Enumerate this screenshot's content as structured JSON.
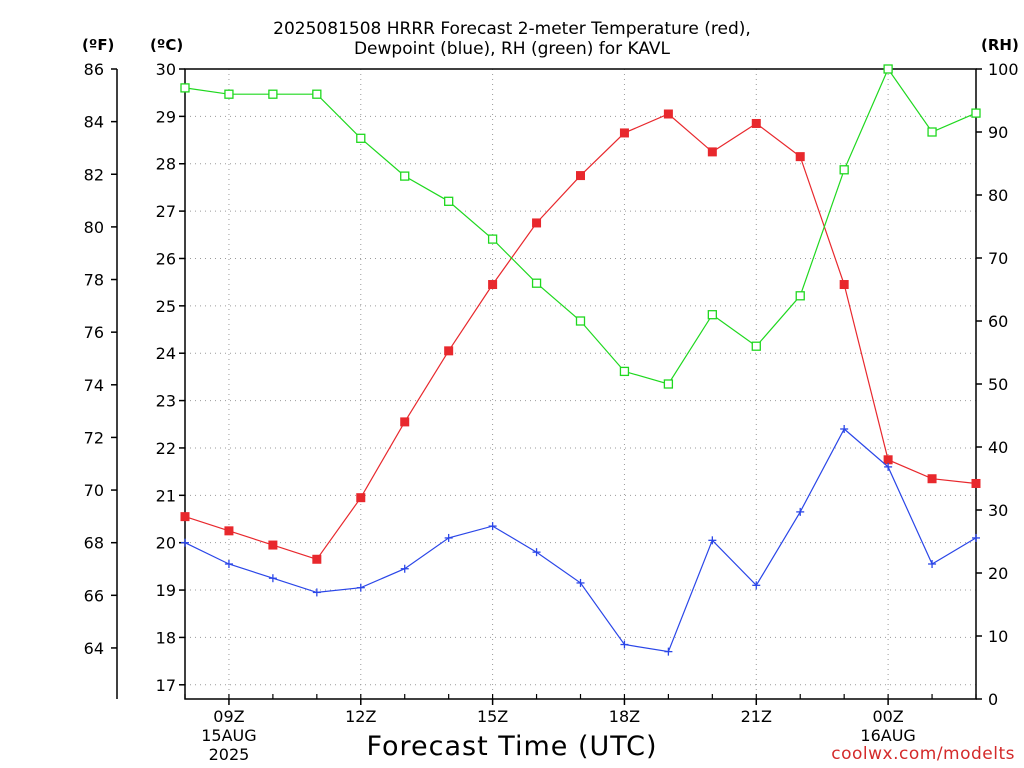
{
  "title": {
    "line1": "2025081508 HRRR Forecast 2-meter Temperature (red),",
    "line2": "Dewpoint (blue), RH (green) for KAVL"
  },
  "axes": {
    "f_unit": "(ºF)",
    "c_unit": "(ºC)",
    "rh_unit": "(RH)",
    "x_title": "Forecast Time (UTC)"
  },
  "credit": "coolwx.com/modelts",
  "colors": {
    "temperature": "#e8282d",
    "dewpoint": "#2a46e8",
    "rh": "#1fd81f",
    "grid": "#9a9a9a"
  },
  "chart_data": {
    "type": "line",
    "title": "2025081508 HRRR Forecast 2-meter Temperature (red), Dewpoint (blue), RH (green) for KAVL",
    "xlabel": "Forecast Time (UTC)",
    "x": [
      "08Z",
      "09Z",
      "10Z",
      "11Z",
      "12Z",
      "13Z",
      "14Z",
      "15Z",
      "16Z",
      "17Z",
      "18Z",
      "19Z",
      "20Z",
      "21Z",
      "22Z",
      "23Z",
      "00Z",
      "01Z",
      "02Z"
    ],
    "x_ticks": [
      {
        "index": 1,
        "label": "09Z",
        "sub": [
          "15AUG",
          "2025"
        ]
      },
      {
        "index": 4,
        "label": "12Z",
        "sub": []
      },
      {
        "index": 7,
        "label": "15Z",
        "sub": []
      },
      {
        "index": 10,
        "label": "18Z",
        "sub": []
      },
      {
        "index": 13,
        "label": "21Z",
        "sub": []
      },
      {
        "index": 16,
        "label": "00Z",
        "sub": [
          "16AUG"
        ]
      }
    ],
    "y_left_c": {
      "ylim": [
        16.7,
        30
      ],
      "ticks": [
        17,
        18,
        19,
        20,
        21,
        22,
        23,
        24,
        25,
        26,
        27,
        28,
        29,
        30
      ]
    },
    "y_left_f": {
      "ticks": [
        64,
        66,
        68,
        70,
        72,
        74,
        76,
        78,
        80,
        82,
        84,
        86
      ]
    },
    "y_right_rh": {
      "ylim": [
        0,
        100
      ],
      "ticks": [
        0,
        10,
        20,
        30,
        40,
        50,
        60,
        70,
        80,
        90,
        100
      ]
    },
    "grid": true,
    "series": [
      {
        "name": "Temperature",
        "key": "temperature",
        "axis": "c",
        "marker": "filled-square",
        "values": [
          20.55,
          20.25,
          19.95,
          19.65,
          20.95,
          22.55,
          24.05,
          25.45,
          26.75,
          27.75,
          28.65,
          29.05,
          28.25,
          28.85,
          28.15,
          25.45,
          21.75,
          21.35,
          21.25
        ]
      },
      {
        "name": "Dewpoint",
        "key": "dewpoint",
        "axis": "c",
        "marker": "plus",
        "values": [
          20.0,
          19.55,
          19.25,
          18.95,
          19.05,
          19.45,
          20.1,
          20.35,
          19.8,
          19.15,
          17.85,
          17.7,
          20.05,
          19.1,
          20.65,
          22.4,
          21.6,
          19.55,
          20.1
        ]
      },
      {
        "name": "RH",
        "key": "rh",
        "axis": "rh",
        "marker": "open-square",
        "values": [
          97,
          96,
          96,
          96,
          89,
          83,
          79,
          73,
          66,
          60,
          52,
          50,
          61,
          56,
          64,
          84,
          100,
          90,
          93
        ]
      }
    ]
  }
}
